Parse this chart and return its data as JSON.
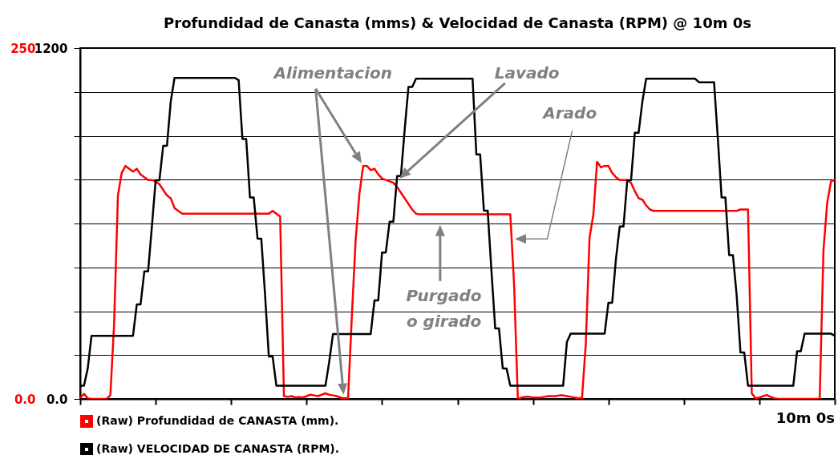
{
  "chart_data": {
    "type": "line",
    "title": "Profundidad de Canasta (mms) & Velocidad de Canasta (RPM) @ 10m 0s",
    "categories": [
      null,
      null,
      null,
      null,
      null,
      null,
      null,
      null,
      null,
      null,
      null,
      null,
      null,
      null,
      null,
      null,
      null,
      null,
      null,
      null,
      null,
      null,
      null,
      null,
      null,
      null,
      null,
      null,
      null,
      null,
      null,
      null,
      null,
      null,
      null,
      null,
      null,
      null,
      null,
      null,
      null,
      null,
      null,
      null,
      null,
      null,
      null,
      null,
      null,
      null,
      null,
      null,
      null,
      null,
      null,
      null,
      null,
      null,
      null,
      null,
      null,
      null,
      null,
      null,
      null,
      null,
      null,
      null,
      null,
      null,
      null,
      null,
      null,
      null,
      null,
      null,
      null,
      null,
      null,
      null,
      null,
      null,
      null,
      null,
      null,
      null,
      null,
      null,
      null,
      null,
      null,
      null,
      null,
      null,
      null,
      null,
      null,
      null,
      null,
      null,
      null,
      null,
      null,
      null,
      null,
      null,
      null,
      null,
      null,
      null,
      null,
      null,
      null,
      null,
      null,
      null,
      null,
      null,
      null,
      null,
      null,
      null,
      null,
      null,
      null,
      null,
      null,
      null,
      null,
      null,
      null,
      null,
      null,
      null,
      null,
      null,
      null,
      null,
      null,
      null,
      null,
      null,
      null,
      null,
      null,
      null,
      null,
      null,
      null,
      null,
      null,
      null,
      null,
      null,
      null,
      null,
      null,
      null,
      null,
      null,
      null,
      null,
      null,
      null,
      null,
      null,
      null,
      null,
      null,
      null,
      null,
      null,
      null,
      null,
      null,
      null,
      null,
      null,
      null,
      null,
      null,
      null,
      null,
      null,
      null,
      null,
      null,
      null,
      null,
      null,
      null,
      null,
      null,
      null,
      null,
      null,
      null,
      null,
      null,
      null,
      null
    ],
    "ylim": [
      0,
      1200
    ],
    "yticks": [
      {
        "value": 0,
        "label": "0.0"
      },
      {
        "value": 150,
        "label": null
      },
      {
        "value": 300,
        "label": null
      },
      {
        "value": 450,
        "label": null
      },
      {
        "value": 600,
        "label": null
      },
      {
        "value": 750,
        "label": null
      },
      {
        "value": 900,
        "label": null
      },
      {
        "value": 1050,
        "label": null
      },
      1200
    ],
    "y2lim": [
      0,
      250
    ],
    "y2ticks": [
      {
        "value": 0,
        "label": "0.0"
      },
      250
    ],
    "grid": "y",
    "legend": "bottom",
    "annotations": [
      "Alimentacion",
      "Lavado",
      "Arado",
      "Purgado\no girado",
      "10m 0s"
    ],
    "series": [
      {
        "name": "(Raw) Profundidad de CANASTA (mm).",
        "color": "#ff0000",
        "axis": "y2",
        "values": [
          0.7,
          3.6,
          0.5,
          0,
          0,
          0,
          0,
          0,
          2.8,
          54,
          145,
          161,
          166,
          164,
          162,
          164,
          160,
          158,
          156,
          156,
          155,
          153,
          149,
          145,
          143,
          136,
          134,
          132,
          132,
          132,
          132,
          132,
          132,
          132,
          132,
          132,
          132,
          132,
          132,
          132,
          132,
          132,
          132,
          132,
          132,
          132,
          132,
          132,
          132,
          132,
          132,
          134,
          132,
          130,
          2,
          1.5,
          2,
          1,
          1.5,
          1,
          2,
          3,
          2.5,
          2,
          3,
          4,
          3,
          2.5,
          2,
          1,
          0.5,
          0.5,
          59,
          113,
          146,
          166,
          166,
          163,
          164,
          160,
          157,
          156,
          155,
          154,
          151,
          147,
          143,
          139,
          135,
          132,
          131.5,
          131.5,
          131.5,
          131.5,
          131.5,
          131.5,
          131.5,
          131.5,
          131.5,
          131.5,
          131.5,
          131.5,
          131.5,
          131.5,
          131.5,
          131.5,
          131.5,
          131.5,
          131.5,
          131.5,
          131.5,
          131.5,
          131.5,
          131.5,
          131.5,
          81.6,
          0,
          1,
          1.5,
          1.5,
          1,
          1,
          1,
          1.5,
          2,
          2,
          2,
          2.5,
          2.5,
          2,
          1.5,
          1,
          0.5,
          0.5,
          39,
          115,
          131,
          169,
          165,
          166,
          166,
          161,
          158,
          156,
          156,
          156,
          154,
          148,
          143,
          142,
          138,
          135,
          134,
          134,
          134,
          134,
          134,
          134,
          134,
          134,
          134,
          134,
          134,
          134,
          134,
          134,
          134,
          134,
          134,
          134,
          134,
          134,
          134,
          134,
          134,
          135,
          135,
          135,
          4,
          0.5,
          1,
          2,
          2.8,
          1.5,
          0.5,
          0,
          0,
          0,
          0,
          0,
          0,
          0,
          0,
          0,
          0,
          0,
          0,
          106,
          140,
          155,
          156
        ]
      },
      {
        "name": "(Raw) VELOCIDAD DE CANASTA (RPM).",
        "color": "#000000",
        "values": [
          45,
          45,
          104,
          216,
          216,
          216,
          216,
          216,
          216,
          216,
          216,
          216,
          216,
          216,
          216,
          323,
          323,
          436,
          436,
          589,
          748,
          748,
          866,
          866,
          1017,
          1098,
          1098,
          1098,
          1098,
          1098,
          1098,
          1098,
          1098,
          1098,
          1098,
          1098,
          1098,
          1098,
          1098,
          1098,
          1098,
          1098,
          1090,
          889,
          889,
          689,
          689,
          548,
          548,
          356,
          145,
          145,
          45,
          45,
          45,
          45,
          45,
          45,
          45,
          45,
          45,
          45,
          45,
          45,
          45,
          45,
          127,
          222,
          222,
          222,
          222,
          222,
          222,
          222,
          222,
          222,
          222,
          222,
          337,
          337,
          501,
          501,
          606,
          606,
          762,
          762,
          921,
          1067,
          1067,
          1095,
          1095,
          1095,
          1095,
          1095,
          1095,
          1095,
          1095,
          1095,
          1095,
          1095,
          1095,
          1095,
          1095,
          1095,
          1095,
          836,
          836,
          644,
          644,
          438,
          241,
          241,
          104,
          104,
          45,
          45,
          45,
          45,
          45,
          45,
          45,
          45,
          45,
          45,
          45,
          45,
          45,
          45,
          45,
          195,
          223,
          223,
          223,
          223,
          223,
          223,
          223,
          223,
          223,
          223,
          329,
          329,
          479,
          590,
          590,
          748,
          748,
          910,
          910,
          1017,
          1095,
          1095,
          1095,
          1095,
          1095,
          1095,
          1095,
          1095,
          1095,
          1095,
          1095,
          1095,
          1095,
          1095,
          1083,
          1083,
          1083,
          1083,
          1083,
          891,
          689,
          689,
          492,
          492,
          353,
          159,
          159,
          45,
          45,
          45,
          45,
          45,
          45,
          45,
          45,
          45,
          45,
          45,
          45,
          45,
          163,
          163,
          223,
          223,
          223,
          223,
          223,
          223,
          223,
          223,
          216
        ]
      }
    ]
  }
}
